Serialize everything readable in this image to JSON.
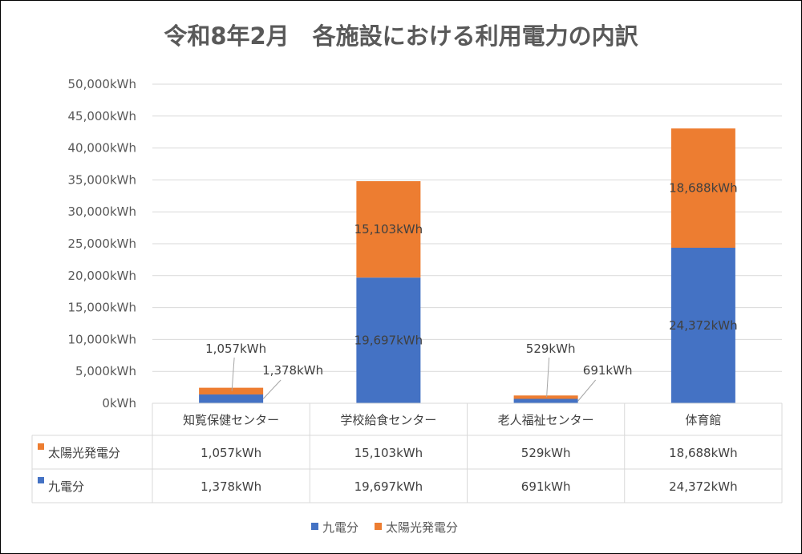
{
  "chart_data": {
    "type": "bar",
    "stacked": true,
    "title": "令和8年2月　各施設における利用電力の内訳",
    "categories": [
      "知覧保健センター",
      "学校給食センター",
      "老人福祉センター",
      "体育館"
    ],
    "series": [
      {
        "name": "九電分",
        "color": "#4472C4",
        "values": [
          1378,
          19697,
          691,
          24372
        ],
        "labels": [
          "1,378kWh",
          "19,697kWh",
          "691kWh",
          "24,372kWh"
        ]
      },
      {
        "name": "太陽光発電分",
        "color": "#ED7D31",
        "values": [
          1057,
          15103,
          529,
          18688
        ],
        "labels": [
          "1,057kWh",
          "15,103kWh",
          "529kWh",
          "18,688kWh"
        ]
      }
    ],
    "ylim": [
      0,
      50000
    ],
    "yticks": [
      0,
      5000,
      10000,
      15000,
      20000,
      25000,
      30000,
      35000,
      40000,
      45000,
      50000
    ],
    "ytick_labels": [
      "0kWh",
      "5,000kWh",
      "10,000kWh",
      "15,000kWh",
      "20,000kWh",
      "25,000kWh",
      "30,000kWh",
      "35,000kWh",
      "40,000kWh",
      "45,000kWh",
      "50,000kWh"
    ],
    "grid": true,
    "data_table": true,
    "legend": "bottom"
  }
}
